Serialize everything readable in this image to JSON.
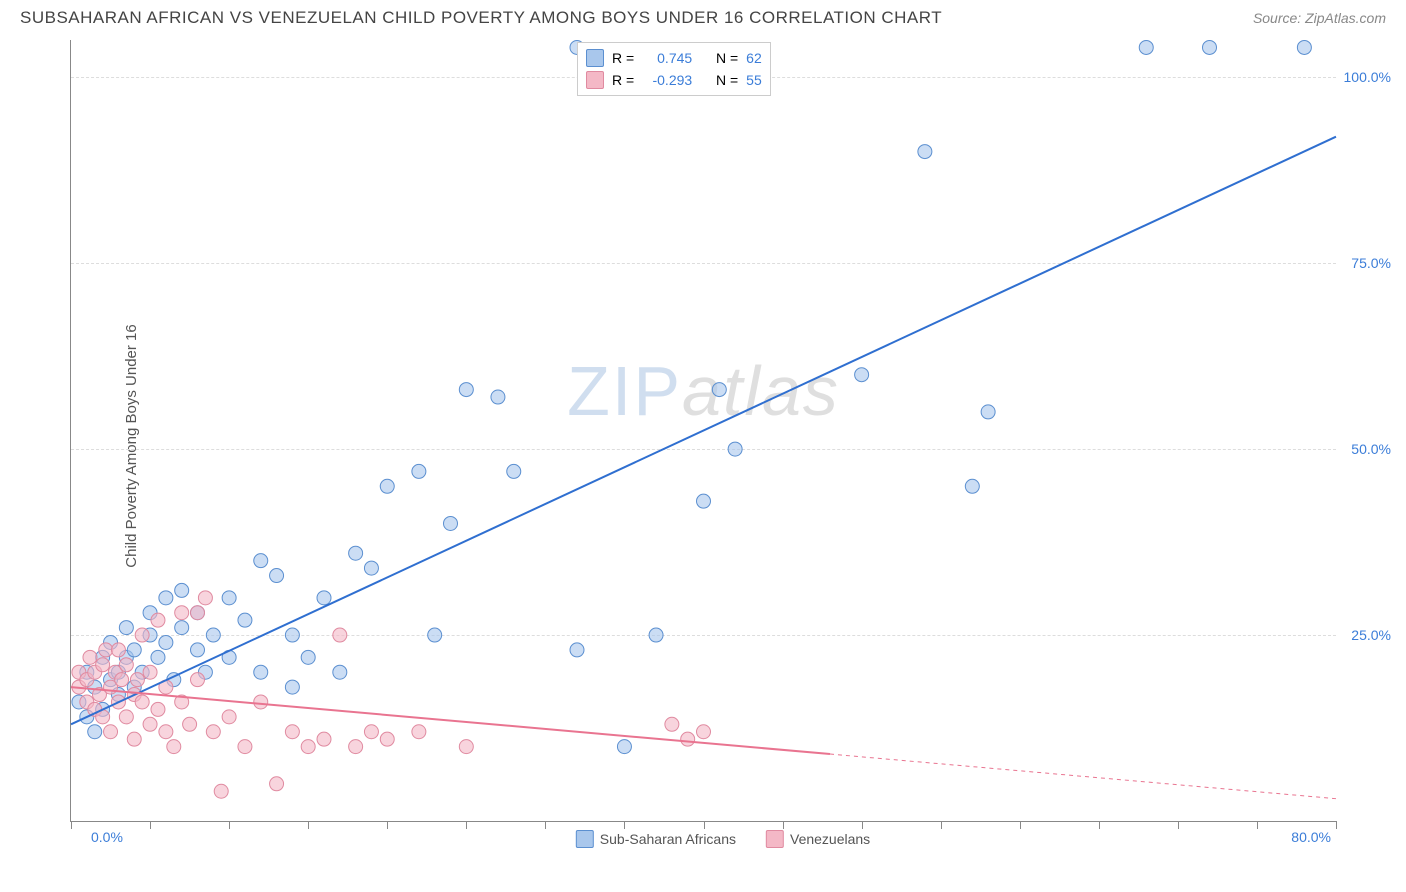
{
  "title": "SUBSAHARAN AFRICAN VS VENEZUELAN CHILD POVERTY AMONG BOYS UNDER 16 CORRELATION CHART",
  "source": "Source: ZipAtlas.com",
  "ylabel": "Child Poverty Among Boys Under 16",
  "watermark": {
    "a": "ZIP",
    "b": "atlas"
  },
  "chart": {
    "type": "scatter",
    "xlim": [
      0,
      80
    ],
    "ylim": [
      0,
      105
    ],
    "x_tick_step": 5,
    "x_first_label": "0.0%",
    "x_last_label": "80.0%",
    "y_ticks": [
      {
        "v": 25,
        "label": "25.0%"
      },
      {
        "v": 50,
        "label": "50.0%"
      },
      {
        "v": 75,
        "label": "75.0%"
      },
      {
        "v": 100,
        "label": "100.0%"
      }
    ],
    "background_color": "#ffffff",
    "grid_color": "#dddddd",
    "marker_radius": 7,
    "marker_opacity": 0.6,
    "line_width": 2
  },
  "series": [
    {
      "name": "Sub-Saharan Africans",
      "color_fill": "#a9c7ec",
      "color_stroke": "#5b8fd0",
      "line_color": "#2f6fd0",
      "R": "0.745",
      "N": "62",
      "regression": {
        "x1": 0,
        "y1": 13,
        "x2": 80,
        "y2": 92,
        "solid_until_x": 80
      },
      "points": [
        [
          0.5,
          16
        ],
        [
          1,
          14
        ],
        [
          1,
          20
        ],
        [
          1.5,
          12
        ],
        [
          1.5,
          18
        ],
        [
          2,
          22
        ],
        [
          2,
          15
        ],
        [
          2.5,
          19
        ],
        [
          2.5,
          24
        ],
        [
          3,
          20
        ],
        [
          3,
          17
        ],
        [
          3.5,
          22
        ],
        [
          3.5,
          26
        ],
        [
          4,
          18
        ],
        [
          4,
          23
        ],
        [
          4.5,
          20
        ],
        [
          5,
          25
        ],
        [
          5,
          28
        ],
        [
          5.5,
          22
        ],
        [
          6,
          24
        ],
        [
          6,
          30
        ],
        [
          6.5,
          19
        ],
        [
          7,
          26
        ],
        [
          7,
          31
        ],
        [
          8,
          23
        ],
        [
          8,
          28
        ],
        [
          8.5,
          20
        ],
        [
          9,
          25
        ],
        [
          10,
          22
        ],
        [
          10,
          30
        ],
        [
          11,
          27
        ],
        [
          12,
          20
        ],
        [
          12,
          35
        ],
        [
          13,
          33
        ],
        [
          14,
          25
        ],
        [
          14,
          18
        ],
        [
          15,
          22
        ],
        [
          16,
          30
        ],
        [
          17,
          20
        ],
        [
          18,
          36
        ],
        [
          19,
          34
        ],
        [
          20,
          45
        ],
        [
          22,
          47
        ],
        [
          23,
          25
        ],
        [
          24,
          40
        ],
        [
          25,
          58
        ],
        [
          27,
          57
        ],
        [
          28,
          47
        ],
        [
          32,
          104
        ],
        [
          32,
          23
        ],
        [
          35,
          10
        ],
        [
          37,
          25
        ],
        [
          40,
          43
        ],
        [
          41,
          58
        ],
        [
          42,
          50
        ],
        [
          50,
          60
        ],
        [
          54,
          90
        ],
        [
          57,
          45
        ],
        [
          58,
          55
        ],
        [
          68,
          104
        ],
        [
          72,
          104
        ],
        [
          78,
          104
        ]
      ]
    },
    {
      "name": "Venezuelans",
      "color_fill": "#f4b8c6",
      "color_stroke": "#e08aa0",
      "line_color": "#e97490",
      "R": "-0.293",
      "N": "55",
      "regression": {
        "x1": 0,
        "y1": 18,
        "x2": 80,
        "y2": 3,
        "solid_until_x": 48
      },
      "points": [
        [
          0.5,
          18
        ],
        [
          0.5,
          20
        ],
        [
          1,
          16
        ],
        [
          1,
          19
        ],
        [
          1.2,
          22
        ],
        [
          1.5,
          15
        ],
        [
          1.5,
          20
        ],
        [
          1.8,
          17
        ],
        [
          2,
          21
        ],
        [
          2,
          14
        ],
        [
          2.2,
          23
        ],
        [
          2.5,
          18
        ],
        [
          2.5,
          12
        ],
        [
          2.8,
          20
        ],
        [
          3,
          16
        ],
        [
          3,
          23
        ],
        [
          3.2,
          19
        ],
        [
          3.5,
          14
        ],
        [
          3.5,
          21
        ],
        [
          4,
          17
        ],
        [
          4,
          11
        ],
        [
          4.2,
          19
        ],
        [
          4.5,
          16
        ],
        [
          4.5,
          25
        ],
        [
          5,
          13
        ],
        [
          5,
          20
        ],
        [
          5.5,
          15
        ],
        [
          5.5,
          27
        ],
        [
          6,
          12
        ],
        [
          6,
          18
        ],
        [
          6.5,
          10
        ],
        [
          7,
          16
        ],
        [
          7,
          28
        ],
        [
          7.5,
          13
        ],
        [
          8,
          19
        ],
        [
          8,
          28
        ],
        [
          8.5,
          30
        ],
        [
          9,
          12
        ],
        [
          9.5,
          4
        ],
        [
          10,
          14
        ],
        [
          11,
          10
        ],
        [
          12,
          16
        ],
        [
          13,
          5
        ],
        [
          14,
          12
        ],
        [
          15,
          10
        ],
        [
          16,
          11
        ],
        [
          17,
          25
        ],
        [
          18,
          10
        ],
        [
          19,
          12
        ],
        [
          20,
          11
        ],
        [
          22,
          12
        ],
        [
          25,
          10
        ],
        [
          38,
          13
        ],
        [
          39,
          11
        ],
        [
          40,
          12
        ]
      ]
    }
  ],
  "top_legend_labels": {
    "R": "R =",
    "N": "N ="
  }
}
